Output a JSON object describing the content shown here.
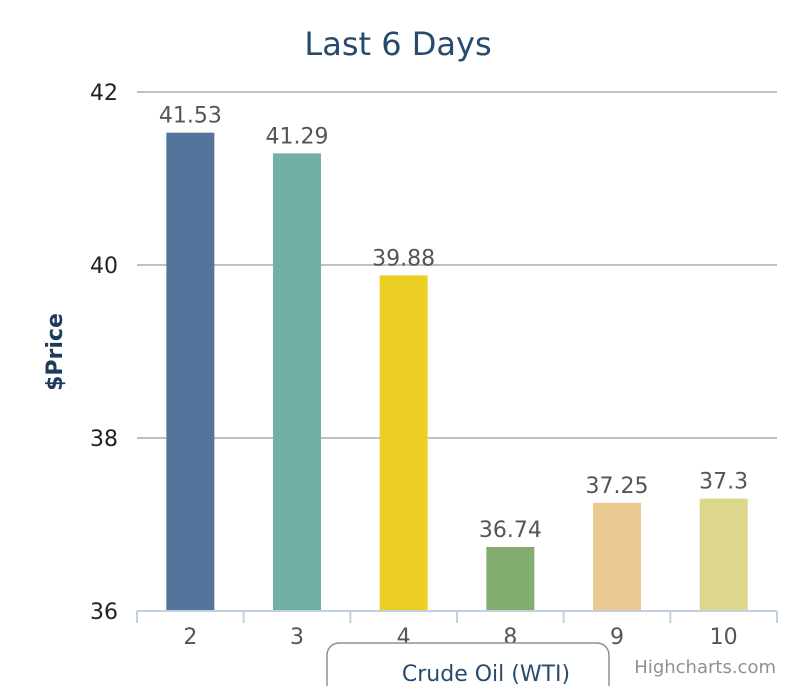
{
  "chart_data": {
    "type": "bar",
    "title": "Last 6 Days",
    "ylabel": "$Price",
    "xlabel": "",
    "categories": [
      "2",
      "3",
      "4",
      "8",
      "9",
      "10"
    ],
    "values": [
      41.53,
      41.29,
      39.88,
      36.74,
      37.25,
      37.3
    ],
    "value_labels": [
      "41.53",
      "41.29",
      "39.88",
      "36.74",
      "37.25",
      "37.3"
    ],
    "colors": [
      "#53759b",
      "#72b0a5",
      "#eccf25",
      "#82ad6f",
      "#e9c98f",
      "#ddd78c"
    ],
    "ylim": [
      36,
      42
    ],
    "yticks": [
      "36",
      "38",
      "40",
      "42"
    ],
    "grid": true,
    "legend": {
      "label": "Crude Oil (WTI)",
      "placement": "bottom-center"
    }
  },
  "credits": "Highcharts.com"
}
